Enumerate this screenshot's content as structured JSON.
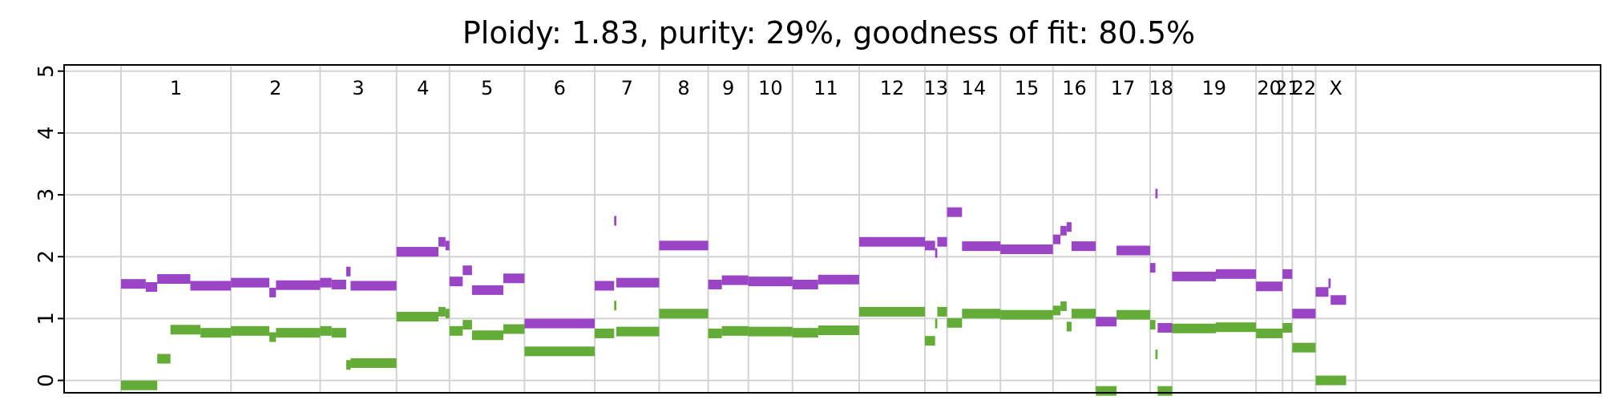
{
  "chart_data": {
    "type": "segments",
    "title": "Ploidy: 1.83, purity: 29%, goodness of fit: 80.5%",
    "xlabel": "",
    "ylabel": "",
    "ylim": [
      -0.2,
      5.1
    ],
    "yticks": [
      "0",
      "1",
      "2",
      "3",
      "4",
      "5"
    ],
    "xlim": [
      0,
      3208
    ],
    "grid": true,
    "chromosomes": [
      {
        "name": "1",
        "start": 0,
        "end": 249
      },
      {
        "name": "2",
        "start": 249,
        "end": 451
      },
      {
        "name": "3",
        "start": 451,
        "end": 624
      },
      {
        "name": "4",
        "start": 624,
        "end": 744
      },
      {
        "name": "5",
        "start": 744,
        "end": 914
      },
      {
        "name": "6",
        "start": 914,
        "end": 1073
      },
      {
        "name": "7",
        "start": 1073,
        "end": 1219
      },
      {
        "name": "8",
        "start": 1219,
        "end": 1330
      },
      {
        "name": "9",
        "start": 1330,
        "end": 1421
      },
      {
        "name": "10",
        "start": 1421,
        "end": 1521
      },
      {
        "name": "11",
        "start": 1521,
        "end": 1672
      },
      {
        "name": "12",
        "start": 1672,
        "end": 1821
      },
      {
        "name": "13",
        "start": 1821,
        "end": 1871
      },
      {
        "name": "14",
        "start": 1871,
        "end": 1992
      },
      {
        "name": "15",
        "start": 1992,
        "end": 2111
      },
      {
        "name": "16",
        "start": 2111,
        "end": 2208
      },
      {
        "name": "17",
        "start": 2208,
        "end": 2331
      },
      {
        "name": "18",
        "start": 2331,
        "end": 2381
      },
      {
        "name": "19",
        "start": 2381,
        "end": 2571
      },
      {
        "name": "20",
        "start": 2571,
        "end": 2631
      },
      {
        "name": "21",
        "start": 2631,
        "end": 2653
      },
      {
        "name": "22",
        "start": 2653,
        "end": 2706
      },
      {
        "name": "X",
        "start": 2706,
        "end": 2797
      }
    ],
    "series": [
      {
        "color": "#9a45c6",
        "segments": [
          [
            0,
            56,
            1.56
          ],
          [
            56,
            82,
            1.51
          ],
          [
            82,
            157,
            1.64
          ],
          [
            157,
            249,
            1.53
          ],
          [
            249,
            336,
            1.58
          ],
          [
            336,
            351,
            1.42
          ],
          [
            351,
            451,
            1.54
          ],
          [
            451,
            477,
            1.58
          ],
          [
            477,
            510,
            1.55
          ],
          [
            510,
            520,
            1.76
          ],
          [
            520,
            624,
            1.53
          ],
          [
            624,
            719,
            2.08
          ],
          [
            719,
            735,
            2.24
          ],
          [
            735,
            744,
            2.18
          ],
          [
            744,
            774,
            1.6
          ],
          [
            774,
            795,
            1.78
          ],
          [
            795,
            866,
            1.46
          ],
          [
            866,
            914,
            1.65
          ],
          [
            914,
            1073,
            0.92
          ],
          [
            1073,
            1117,
            1.53
          ],
          [
            1117,
            1122,
            2.58
          ],
          [
            1122,
            1219,
            1.58
          ],
          [
            1219,
            1330,
            2.18
          ],
          [
            1330,
            1361,
            1.55
          ],
          [
            1361,
            1421,
            1.62
          ],
          [
            1421,
            1521,
            1.6
          ],
          [
            1521,
            1579,
            1.55
          ],
          [
            1579,
            1672,
            1.63
          ],
          [
            1672,
            1821,
            2.24
          ],
          [
            1821,
            1844,
            2.18
          ],
          [
            1844,
            1849,
            2.06
          ],
          [
            1849,
            1871,
            2.24
          ],
          [
            1871,
            1905,
            2.72
          ],
          [
            1905,
            1992,
            2.17
          ],
          [
            1992,
            2111,
            2.12
          ],
          [
            2111,
            2128,
            2.28
          ],
          [
            2128,
            2142,
            2.42
          ],
          [
            2142,
            2153,
            2.48
          ],
          [
            2153,
            2208,
            2.17
          ],
          [
            2208,
            2255,
            0.95
          ],
          [
            2255,
            2331,
            2.1
          ],
          [
            2331,
            2343,
            1.82
          ],
          [
            2343,
            2348,
            3.02
          ],
          [
            2348,
            2381,
            0.85
          ],
          [
            2381,
            2480,
            1.68
          ],
          [
            2480,
            2571,
            1.72
          ],
          [
            2571,
            2631,
            1.52
          ],
          [
            2631,
            2653,
            1.72
          ],
          [
            2653,
            2706,
            1.08
          ],
          [
            2706,
            2735,
            1.43
          ],
          [
            2735,
            2740,
            1.57
          ],
          [
            2740,
            2775,
            1.3
          ]
        ]
      },
      {
        "color": "#62ac37",
        "segments": [
          [
            0,
            82,
            -0.08
          ],
          [
            82,
            112,
            0.35
          ],
          [
            112,
            180,
            0.82
          ],
          [
            180,
            249,
            0.77
          ],
          [
            249,
            336,
            0.8
          ],
          [
            336,
            351,
            0.7
          ],
          [
            351,
            451,
            0.77
          ],
          [
            451,
            477,
            0.8
          ],
          [
            477,
            510,
            0.77
          ],
          [
            510,
            520,
            0.25
          ],
          [
            520,
            624,
            0.28
          ],
          [
            624,
            719,
            1.03
          ],
          [
            719,
            735,
            1.11
          ],
          [
            735,
            744,
            1.08
          ],
          [
            744,
            774,
            0.8
          ],
          [
            774,
            795,
            0.9
          ],
          [
            795,
            866,
            0.73
          ],
          [
            866,
            914,
            0.83
          ],
          [
            914,
            1073,
            0.47
          ],
          [
            1073,
            1117,
            0.76
          ],
          [
            1117,
            1122,
            1.21
          ],
          [
            1122,
            1219,
            0.79
          ],
          [
            1219,
            1330,
            1.08
          ],
          [
            1330,
            1361,
            0.76
          ],
          [
            1361,
            1421,
            0.8
          ],
          [
            1421,
            1521,
            0.79
          ],
          [
            1521,
            1579,
            0.77
          ],
          [
            1579,
            1672,
            0.81
          ],
          [
            1672,
            1821,
            1.11
          ],
          [
            1821,
            1844,
            0.64
          ],
          [
            1844,
            1849,
            0.92
          ],
          [
            1849,
            1871,
            1.11
          ],
          [
            1871,
            1905,
            0.93
          ],
          [
            1905,
            1992,
            1.08
          ],
          [
            1992,
            2111,
            1.06
          ],
          [
            2111,
            2128,
            1.13
          ],
          [
            2128,
            2142,
            1.2
          ],
          [
            2142,
            2153,
            0.87
          ],
          [
            2153,
            2208,
            1.08
          ],
          [
            2208,
            2255,
            -0.17
          ],
          [
            2255,
            2331,
            1.06
          ],
          [
            2331,
            2343,
            0.9
          ],
          [
            2343,
            2348,
            0.42
          ],
          [
            2348,
            2381,
            -0.17
          ],
          [
            2381,
            2480,
            0.84
          ],
          [
            2480,
            2571,
            0.86
          ],
          [
            2571,
            2631,
            0.76
          ],
          [
            2631,
            2653,
            0.85
          ],
          [
            2653,
            2706,
            0.53
          ],
          [
            2706,
            2775,
            0.0
          ]
        ]
      }
    ]
  }
}
